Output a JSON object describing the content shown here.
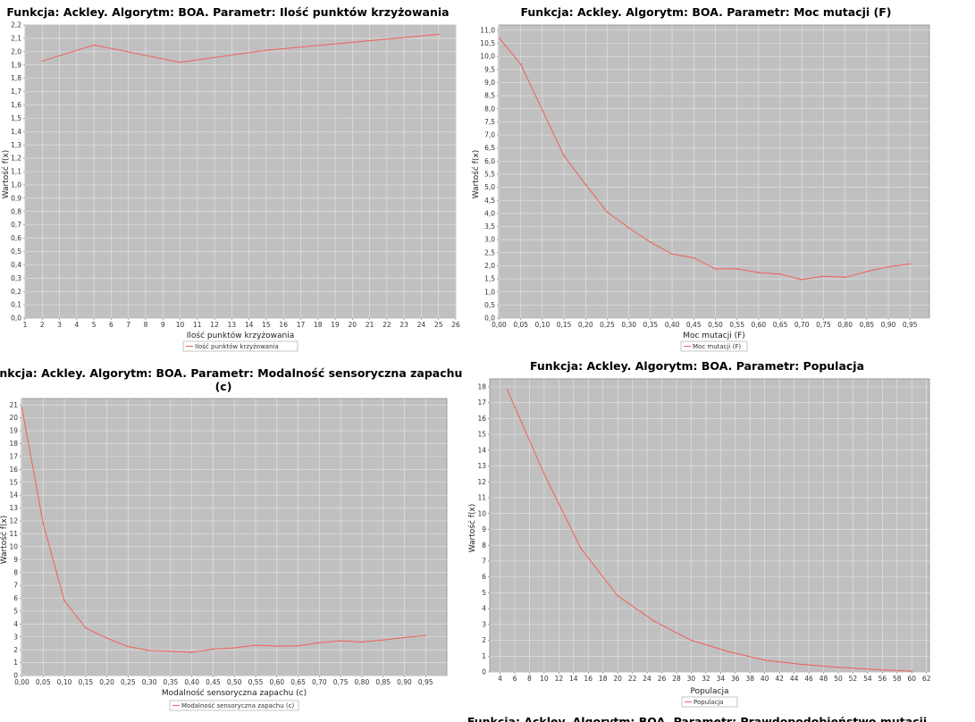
{
  "chart_data": [
    {
      "type": "line",
      "title": "Funkcja: Ackley. Algorytm: BOA. Parametr: Ilość punktów krzyżowania",
      "title_line2": "",
      "xlabel": "Ilość punktów krzyżowania",
      "ylabel": "Wartość f(x)",
      "xlim": [
        1,
        26
      ],
      "ylim": [
        0,
        2.2
      ],
      "xticks": [
        1,
        2,
        3,
        4,
        5,
        6,
        7,
        8,
        9,
        10,
        11,
        12,
        13,
        14,
        15,
        16,
        17,
        18,
        19,
        20,
        21,
        22,
        23,
        24,
        25,
        26
      ],
      "xtick_labels": [
        "1",
        "2",
        "3",
        "4",
        "5",
        "6",
        "7",
        "8",
        "9",
        "10",
        "11",
        "12",
        "13",
        "14",
        "15",
        "16",
        "17",
        "18",
        "19",
        "20",
        "21",
        "22",
        "23",
        "24",
        "25",
        "26"
      ],
      "yticks": [
        0,
        0.1,
        0.2,
        0.3,
        0.4,
        0.5,
        0.6,
        0.7,
        0.8,
        0.9,
        1.0,
        1.1,
        1.2,
        1.3,
        1.4,
        1.5,
        1.6,
        1.7,
        1.8,
        1.9,
        2.0,
        2.1,
        2.2
      ],
      "ytick_labels": [
        "0,0",
        "0,1",
        "0,2",
        "0,3",
        "0,4",
        "0,5",
        "0,6",
        "0,7",
        "0,8",
        "0,9",
        "1,0",
        "1,1",
        "1,2",
        "1,3",
        "1,4",
        "1,5",
        "1,6",
        "1,7",
        "1,8",
        "1,9",
        "2,0",
        "2,1",
        "2,2"
      ],
      "grid": true,
      "legend_position": "bottom",
      "series": [
        {
          "name": "Ilość punktów krzyżowania",
          "color": "#f0605a",
          "x": [
            2,
            5,
            10,
            15,
            20,
            25
          ],
          "y": [
            1.93,
            2.05,
            1.92,
            2.01,
            2.07,
            2.13
          ]
        }
      ]
    },
    {
      "type": "line",
      "title": "Funkcja: Ackley. Algorytm: BOA. Parametr: Moc mutacji (F)",
      "title_line2": "",
      "xlabel": "Moc mutacji (F)",
      "ylabel": "Wartość f(x)",
      "xlim": [
        -0.001,
        0.995
      ],
      "ylim": [
        0,
        11.2
      ],
      "xticks": [
        0,
        0.05,
        0.1,
        0.15,
        0.2,
        0.25,
        0.3,
        0.35,
        0.4,
        0.45,
        0.5,
        0.55,
        0.6,
        0.65,
        0.7,
        0.75,
        0.8,
        0.85,
        0.9,
        0.95
      ],
      "xtick_labels": [
        "0,00",
        "0,05",
        "0,10",
        "0,15",
        "0,20",
        "0,25",
        "0,30",
        "0,35",
        "0,40",
        "0,45",
        "0,50",
        "0,55",
        "0,60",
        "0,65",
        "0,70",
        "0,75",
        "0,80",
        "0,85",
        "0,90",
        "0,95"
      ],
      "yticks": [
        0,
        0.5,
        1,
        1.5,
        2,
        2.5,
        3,
        3.5,
        4,
        4.5,
        5,
        5.5,
        6,
        6.5,
        7,
        7.5,
        8,
        8.5,
        9,
        9.5,
        10,
        10.5,
        11
      ],
      "ytick_labels": [
        "0,0",
        "0,5",
        "1,0",
        "1,5",
        "2,0",
        "2,5",
        "3,0",
        "3,5",
        "4,0",
        "4,5",
        "5,0",
        "5,5",
        "6,0",
        "6,5",
        "7,0",
        "7,5",
        "8,0",
        "8,5",
        "9,0",
        "9,5",
        "10,0",
        "10,5",
        "11,0"
      ],
      "grid": true,
      "legend_position": "bottom",
      "series": [
        {
          "name": "Moc mutacji (F)",
          "color": "#f0605a",
          "x": [
            0,
            0.05,
            0.1,
            0.15,
            0.2,
            0.25,
            0.3,
            0.35,
            0.4,
            0.45,
            0.5,
            0.55,
            0.6,
            0.65,
            0.7,
            0.75,
            0.8,
            0.85,
            0.9,
            0.95
          ],
          "y": [
            10.7,
            9.7,
            7.95,
            6.2,
            5.1,
            4.05,
            3.45,
            2.9,
            2.45,
            2.3,
            1.88,
            1.88,
            1.74,
            1.68,
            1.47,
            1.6,
            1.56,
            1.78,
            1.96,
            2.07
          ]
        }
      ]
    },
    {
      "type": "line",
      "title": "Funkcja: Ackley. Algorytm: BOA. Parametr: Modalność sensoryczna zapachu",
      "title_line2": "(c)",
      "xlabel": "Modalność sensoryczna zapachu (c)",
      "ylabel": "Wartość f(x)",
      "xlim": [
        -0.001,
        1.0
      ],
      "ylim": [
        0,
        21.5
      ],
      "xticks": [
        0,
        0.05,
        0.1,
        0.15,
        0.2,
        0.25,
        0.3,
        0.35,
        0.4,
        0.45,
        0.5,
        0.55,
        0.6,
        0.65,
        0.7,
        0.75,
        0.8,
        0.85,
        0.9,
        0.95
      ],
      "xtick_labels": [
        "0,00",
        "0,05",
        "0,10",
        "0,15",
        "0,20",
        "0,25",
        "0,30",
        "0,35",
        "0,40",
        "0,45",
        "0,50",
        "0,55",
        "0,60",
        "0,65",
        "0,70",
        "0,75",
        "0,80",
        "0,85",
        "0,90",
        "0,95"
      ],
      "yticks": [
        0,
        1,
        2,
        3,
        4,
        5,
        6,
        7,
        8,
        9,
        10,
        11,
        12,
        13,
        14,
        15,
        16,
        17,
        18,
        19,
        20,
        21
      ],
      "ytick_labels": [
        "0",
        "1",
        "2",
        "3",
        "4",
        "5",
        "6",
        "7",
        "8",
        "9",
        "10",
        "11",
        "12",
        "13",
        "14",
        "15",
        "16",
        "17",
        "18",
        "19",
        "20",
        "21"
      ],
      "grid": true,
      "legend_position": "bottom",
      "series": [
        {
          "name": "Modalność sensoryczna zapachu (c)",
          "color": "#f0605a",
          "x": [
            0,
            0.05,
            0.1,
            0.15,
            0.2,
            0.25,
            0.3,
            0.35,
            0.4,
            0.45,
            0.5,
            0.55,
            0.6,
            0.65,
            0.7,
            0.75,
            0.8,
            0.85,
            0.9,
            0.95
          ],
          "y": [
            20.8,
            11.8,
            5.8,
            3.7,
            2.9,
            2.25,
            1.95,
            1.88,
            1.8,
            2.05,
            2.15,
            2.35,
            2.28,
            2.3,
            2.55,
            2.7,
            2.6,
            2.75,
            2.95,
            3.1
          ]
        }
      ]
    },
    {
      "type": "line",
      "title": "Funkcja: Ackley. Algorytm: BOA. Parametr: Populacja",
      "title_line2": "",
      "xlabel": "Populacja",
      "ylabel": "Wartość f(x)",
      "xlim": [
        2.6,
        62.4
      ],
      "ylim": [
        0,
        18.5
      ],
      "xticks": [
        4,
        6,
        8,
        10,
        12,
        14,
        16,
        18,
        20,
        22,
        24,
        26,
        28,
        30,
        32,
        34,
        36,
        38,
        40,
        42,
        44,
        46,
        48,
        50,
        52,
        54,
        56,
        58,
        60,
        62
      ],
      "xtick_labels": [
        "4",
        "6",
        "8",
        "10",
        "12",
        "14",
        "16",
        "18",
        "20",
        "22",
        "24",
        "26",
        "28",
        "30",
        "32",
        "34",
        "36",
        "38",
        "40",
        "42",
        "44",
        "46",
        "48",
        "50",
        "52",
        "54",
        "56",
        "58",
        "60",
        "62"
      ],
      "yticks": [
        0,
        1,
        2,
        3,
        4,
        5,
        6,
        7,
        8,
        9,
        10,
        11,
        12,
        13,
        14,
        15,
        16,
        17,
        18
      ],
      "ytick_labels": [
        "0",
        "1",
        "2",
        "3",
        "4",
        "5",
        "6",
        "7",
        "8",
        "9",
        "10",
        "11",
        "12",
        "13",
        "14",
        "15",
        "16",
        "17",
        "18"
      ],
      "grid": true,
      "legend_position": "bottom",
      "series": [
        {
          "name": "Populacja",
          "color": "#f0605a",
          "x": [
            5,
            10,
            15,
            20,
            25,
            30,
            35,
            40,
            45,
            50,
            55,
            60
          ],
          "y": [
            17.8,
            12.5,
            7.8,
            4.8,
            3.2,
            2.0,
            1.3,
            0.75,
            0.48,
            0.3,
            0.15,
            0.05
          ]
        }
      ]
    }
  ],
  "cut_title": {
    "text": "Funkcja: Ackley. Algorytm: BOA. Parametr: Prawdopodobieństwo mutacji"
  }
}
